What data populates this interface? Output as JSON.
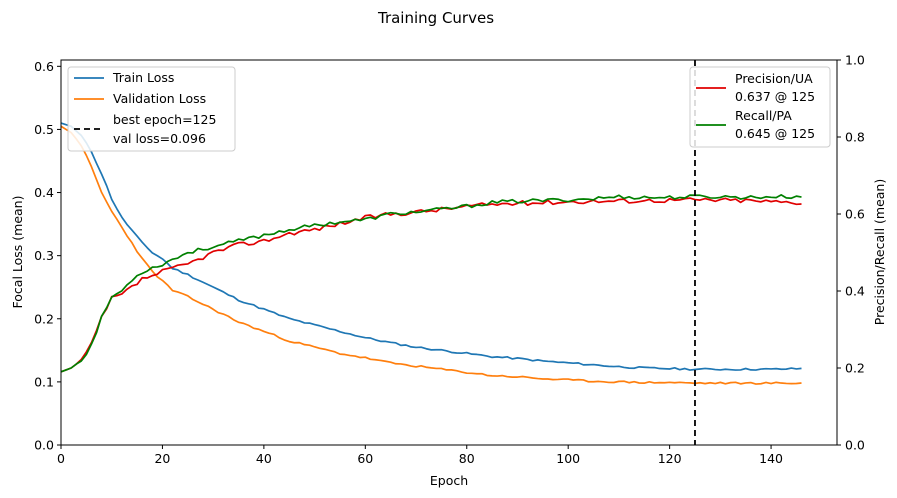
{
  "chart_data": {
    "type": "line",
    "title": "Training Curves",
    "xlabel": "Epoch",
    "ylabel_left": "Focal Loss (mean)",
    "ylabel_right": "Precision/Recall (mean)",
    "xlim": [
      0,
      153
    ],
    "ylim_left": [
      0,
      0.61
    ],
    "ylim_right": [
      0,
      1.0
    ],
    "x_ticks": [
      0,
      20,
      40,
      60,
      80,
      100,
      120,
      140
    ],
    "y_ticks_left": [
      0.0,
      0.1,
      0.2,
      0.3,
      0.4,
      0.5,
      0.6
    ],
    "y_ticks_right": [
      0.0,
      0.2,
      0.4,
      0.6,
      0.8,
      1.0
    ],
    "grid": false,
    "best_epoch": 125,
    "legend_left": {
      "placement": "top-left",
      "entries": [
        "Train Loss",
        "Validation Loss",
        "best epoch=125",
        "val loss=0.096"
      ]
    },
    "legend_right": {
      "placement": "top-right",
      "entries": [
        "Precision/UA",
        "0.637 @ 125",
        "Recall/PA",
        "0.645 @ 125"
      ]
    },
    "colors": {
      "train": "#1f77b4",
      "val": "#ff7f0e",
      "precision": "#e00000",
      "recall": "#008000",
      "best": "#000000"
    },
    "series": [
      {
        "name": "Train Loss",
        "axis": "left",
        "keypoints": [
          [
            0,
            0.51
          ],
          [
            2,
            0.505
          ],
          [
            4,
            0.49
          ],
          [
            6,
            0.465
          ],
          [
            8,
            0.43
          ],
          [
            10,
            0.39
          ],
          [
            12,
            0.36
          ],
          [
            14,
            0.34
          ],
          [
            16,
            0.32
          ],
          [
            18,
            0.305
          ],
          [
            20,
            0.295
          ],
          [
            22,
            0.28
          ],
          [
            25,
            0.27
          ],
          [
            30,
            0.25
          ],
          [
            35,
            0.23
          ],
          [
            40,
            0.215
          ],
          [
            45,
            0.2
          ],
          [
            50,
            0.19
          ],
          [
            55,
            0.18
          ],
          [
            60,
            0.17
          ],
          [
            65,
            0.162
          ],
          [
            70,
            0.155
          ],
          [
            75,
            0.15
          ],
          [
            80,
            0.145
          ],
          [
            85,
            0.14
          ],
          [
            90,
            0.137
          ],
          [
            95,
            0.133
          ],
          [
            100,
            0.13
          ],
          [
            105,
            0.127
          ],
          [
            110,
            0.124
          ],
          [
            115,
            0.122
          ],
          [
            120,
            0.121
          ],
          [
            125,
            0.12
          ],
          [
            130,
            0.12
          ],
          [
            135,
            0.12
          ],
          [
            140,
            0.12
          ],
          [
            146,
            0.121
          ]
        ]
      },
      {
        "name": "Validation Loss",
        "axis": "left",
        "keypoints": [
          [
            0,
            0.505
          ],
          [
            2,
            0.495
          ],
          [
            4,
            0.475
          ],
          [
            6,
            0.44
          ],
          [
            8,
            0.4
          ],
          [
            10,
            0.37
          ],
          [
            12,
            0.345
          ],
          [
            14,
            0.32
          ],
          [
            16,
            0.295
          ],
          [
            18,
            0.275
          ],
          [
            20,
            0.26
          ],
          [
            22,
            0.245
          ],
          [
            25,
            0.235
          ],
          [
            30,
            0.215
          ],
          [
            35,
            0.195
          ],
          [
            40,
            0.18
          ],
          [
            45,
            0.165
          ],
          [
            50,
            0.155
          ],
          [
            55,
            0.145
          ],
          [
            60,
            0.138
          ],
          [
            65,
            0.13
          ],
          [
            70,
            0.125
          ],
          [
            75,
            0.12
          ],
          [
            80,
            0.115
          ],
          [
            85,
            0.11
          ],
          [
            90,
            0.108
          ],
          [
            95,
            0.105
          ],
          [
            100,
            0.103
          ],
          [
            105,
            0.101
          ],
          [
            110,
            0.1
          ],
          [
            115,
            0.099
          ],
          [
            120,
            0.099
          ],
          [
            125,
            0.098
          ],
          [
            130,
            0.098
          ],
          [
            135,
            0.098
          ],
          [
            140,
            0.098
          ],
          [
            146,
            0.098
          ]
        ]
      },
      {
        "name": "Precision/UA",
        "axis": "right",
        "keypoints": [
          [
            0,
            0.19
          ],
          [
            2,
            0.2
          ],
          [
            4,
            0.22
          ],
          [
            6,
            0.26
          ],
          [
            8,
            0.33
          ],
          [
            10,
            0.38
          ],
          [
            12,
            0.39
          ],
          [
            14,
            0.41
          ],
          [
            16,
            0.43
          ],
          [
            18,
            0.44
          ],
          [
            20,
            0.45
          ],
          [
            25,
            0.47
          ],
          [
            30,
            0.5
          ],
          [
            35,
            0.52
          ],
          [
            40,
            0.53
          ],
          [
            45,
            0.55
          ],
          [
            50,
            0.56
          ],
          [
            55,
            0.575
          ],
          [
            60,
            0.59
          ],
          [
            65,
            0.6
          ],
          [
            70,
            0.605
          ],
          [
            75,
            0.612
          ],
          [
            80,
            0.62
          ],
          [
            85,
            0.625
          ],
          [
            90,
            0.628
          ],
          [
            95,
            0.63
          ],
          [
            100,
            0.632
          ],
          [
            105,
            0.633
          ],
          [
            110,
            0.634
          ],
          [
            115,
            0.635
          ],
          [
            120,
            0.636
          ],
          [
            125,
            0.637
          ],
          [
            130,
            0.636
          ],
          [
            135,
            0.635
          ],
          [
            140,
            0.632
          ],
          [
            146,
            0.63
          ]
        ]
      },
      {
        "name": "Recall/PA",
        "axis": "right",
        "keypoints": [
          [
            0,
            0.19
          ],
          [
            2,
            0.2
          ],
          [
            4,
            0.22
          ],
          [
            6,
            0.26
          ],
          [
            8,
            0.33
          ],
          [
            10,
            0.385
          ],
          [
            12,
            0.4
          ],
          [
            14,
            0.43
          ],
          [
            16,
            0.45
          ],
          [
            18,
            0.46
          ],
          [
            20,
            0.47
          ],
          [
            25,
            0.5
          ],
          [
            30,
            0.515
          ],
          [
            35,
            0.53
          ],
          [
            40,
            0.545
          ],
          [
            45,
            0.56
          ],
          [
            50,
            0.57
          ],
          [
            55,
            0.58
          ],
          [
            60,
            0.585
          ],
          [
            65,
            0.6
          ],
          [
            70,
            0.605
          ],
          [
            75,
            0.612
          ],
          [
            80,
            0.62
          ],
          [
            85,
            0.63
          ],
          [
            90,
            0.633
          ],
          [
            95,
            0.635
          ],
          [
            100,
            0.637
          ],
          [
            105,
            0.64
          ],
          [
            110,
            0.645
          ],
          [
            115,
            0.643
          ],
          [
            120,
            0.643
          ],
          [
            125,
            0.645
          ],
          [
            130,
            0.645
          ],
          [
            135,
            0.643
          ],
          [
            140,
            0.645
          ],
          [
            146,
            0.645
          ]
        ]
      }
    ]
  }
}
